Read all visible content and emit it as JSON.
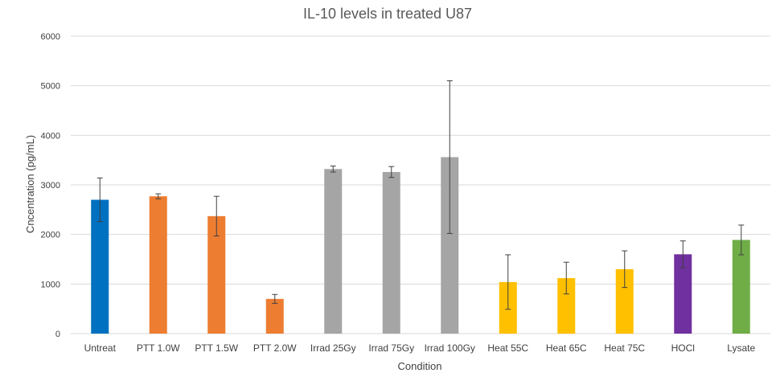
{
  "chart_data": {
    "type": "bar",
    "title": "IL-10 levels in treated U87",
    "xlabel": "Condition",
    "ylabel": "Cncentration (pg/mL)",
    "ylim": [
      0,
      6000
    ],
    "yticks": [
      0,
      1000,
      2000,
      3000,
      4000,
      5000,
      6000
    ],
    "grid": true,
    "legend": "none",
    "categories": [
      "Untreat",
      "PTT 1.0W",
      "PTT 1.5W",
      "PTT 2.0W",
      "Irrad 25Gy",
      "Irrad 75Gy",
      "Irrad 100Gy",
      "Heat 55C",
      "Heat 65C",
      "Heat 75C",
      "HOCl",
      "Lysate"
    ],
    "values": [
      2700,
      2770,
      2370,
      700,
      3320,
      3260,
      3560,
      1040,
      1120,
      1300,
      1600,
      1890
    ],
    "error": [
      440,
      50,
      400,
      90,
      60,
      110,
      1540,
      550,
      320,
      370,
      270,
      300
    ],
    "colors": [
      "#0070C0",
      "#ED7D31",
      "#ED7D31",
      "#ED7D31",
      "#A5A5A5",
      "#A5A5A5",
      "#A5A5A5",
      "#FFC000",
      "#FFC000",
      "#FFC000",
      "#7030A0",
      "#70AD47"
    ]
  }
}
